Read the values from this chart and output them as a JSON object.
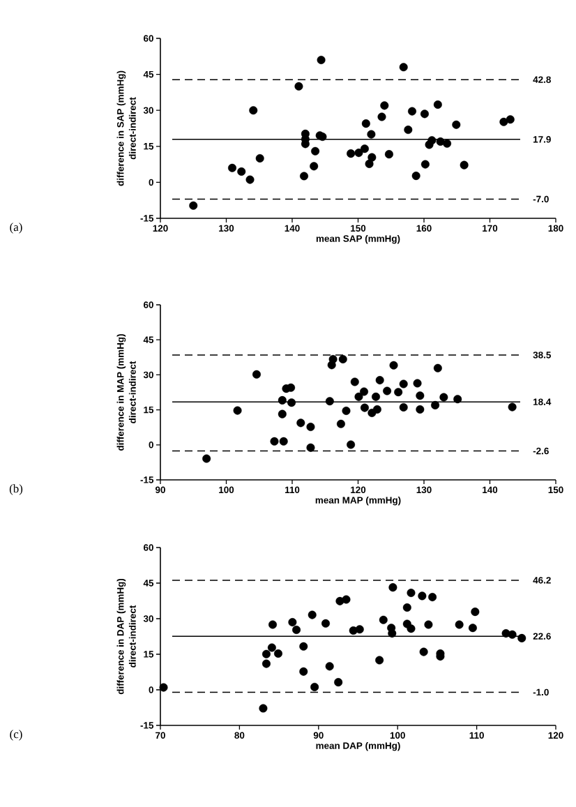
{
  "chart_data": [
    {
      "type": "scatter",
      "xlabel": "mean SAP (mmHg)",
      "ylabel": "difference in SAP (mmHg)",
      "annotations": [
        "direct-indirect",
        "(a)"
      ],
      "color": "#000000",
      "marker": "circle",
      "xlim": [
        120,
        180
      ],
      "ylim": [
        -15,
        60
      ],
      "xticks": [
        120,
        130,
        140,
        150,
        160,
        170,
        180
      ],
      "yticks": [
        -15,
        0,
        15,
        30,
        45,
        60
      ],
      "x": [
        125.0,
        130.9,
        132.3,
        133.6,
        134.1,
        135.1,
        141.0,
        141.8,
        142.0,
        142.0,
        142.0,
        143.5,
        143.3,
        144.4,
        144.2,
        144.6,
        148.9,
        150.1,
        151.0,
        151.2,
        152.0,
        152.1,
        151.7,
        153.6,
        154.0,
        154.7,
        156.9,
        157.6,
        158.2,
        158.8,
        160.1,
        160.2,
        160.8,
        161.2,
        162.1,
        162.5,
        163.5,
        164.9,
        166.1,
        172.1,
        173.1
      ],
      "values": [
        -9.7,
        6.0,
        4.5,
        1.1,
        30.0,
        10.0,
        40.0,
        2.6,
        20.2,
        18.0,
        16.0,
        13.0,
        6.7,
        51.0,
        19.5,
        19.0,
        12.0,
        12.3,
        14.0,
        24.5,
        20.0,
        10.4,
        7.7,
        27.3,
        32.0,
        11.7,
        48.0,
        21.9,
        29.6,
        2.7,
        28.5,
        7.5,
        15.7,
        17.5,
        32.4,
        17.0,
        16.2,
        24.0,
        7.2,
        25.2,
        26.2
      ],
      "ref_lines": [
        {
          "axis": "y",
          "value": 42.8,
          "label": "42.8",
          "line_style": "dashed"
        },
        {
          "axis": "y",
          "value": 17.9,
          "label": "17.9",
          "line_style": "solid"
        },
        {
          "axis": "y",
          "value": -7.0,
          "label": "-7.0",
          "line_style": "dashed"
        }
      ]
    },
    {
      "type": "scatter",
      "xlabel": "mean MAP (mmHg)",
      "ylabel": "difference in MAP (mmHg)",
      "annotations": [
        "direct-indirect",
        "(b)"
      ],
      "color": "#000000",
      "marker": "circle",
      "xlim": [
        90,
        150
      ],
      "ylim": [
        -15,
        60
      ],
      "xticks": [
        90,
        100,
        110,
        120,
        130,
        140,
        150
      ],
      "yticks": [
        -15,
        0,
        15,
        30,
        45,
        60
      ],
      "x": [
        97.0,
        101.7,
        104.6,
        107.3,
        108.7,
        108.5,
        108.5,
        109.1,
        109.8,
        109.9,
        111.3,
        112.8,
        112.8,
        115.7,
        116.0,
        116.2,
        117.7,
        117.4,
        118.2,
        118.9,
        119.5,
        120.1,
        120.9,
        121.0,
        122.1,
        122.7,
        122.9,
        123.3,
        124.4,
        125.4,
        126.1,
        126.9,
        126.9,
        129.0,
        129.4,
        129.4,
        131.7,
        132.1,
        133.0,
        135.1,
        143.4
      ],
      "values": [
        -5.9,
        14.7,
        30.2,
        1.5,
        1.5,
        19.1,
        13.2,
        24.1,
        24.5,
        18.1,
        9.4,
        7.7,
        -1.2,
        18.7,
        34.2,
        36.7,
        36.7,
        9.0,
        14.6,
        0.1,
        27.0,
        20.6,
        22.8,
        15.9,
        13.7,
        20.6,
        15.2,
        27.7,
        23.1,
        34.1,
        22.6,
        26.1,
        16.1,
        26.4,
        21.1,
        15.2,
        17.0,
        32.9,
        20.4,
        19.6,
        16.2
      ],
      "ref_lines": [
        {
          "axis": "y",
          "value": 38.5,
          "label": "38.5",
          "line_style": "dashed"
        },
        {
          "axis": "y",
          "value": 18.4,
          "label": "18.4",
          "line_style": "solid"
        },
        {
          "axis": "y",
          "value": -2.6,
          "label": "-2.6",
          "line_style": "dashed"
        }
      ]
    },
    {
      "type": "scatter",
      "xlabel": "mean DAP (mmHg)",
      "ylabel": "difference in DAP (mmHg)",
      "annotations": [
        "direct-indirect",
        "(c)"
      ],
      "color": "#000000",
      "marker": "circle",
      "xlim": [
        70,
        120
      ],
      "ylim": [
        -15,
        60
      ],
      "xticks": [
        70,
        80,
        90,
        100,
        110,
        120
      ],
      "yticks": [
        -15,
        0,
        15,
        30,
        45,
        60
      ],
      "x": [
        70.4,
        83.0,
        83.4,
        83.4,
        84.1,
        84.2,
        84.9,
        86.7,
        87.2,
        88.1,
        88.1,
        89.2,
        89.5,
        90.9,
        91.4,
        92.5,
        92.7,
        93.5,
        94.4,
        95.2,
        97.7,
        98.2,
        99.2,
        99.3,
        99.4,
        101.2,
        101.2,
        101.7,
        101.7,
        103.1,
        103.3,
        103.9,
        104.4,
        105.4,
        105.4,
        107.8,
        109.5,
        109.8,
        113.7,
        114.5,
        115.7
      ],
      "values": [
        1.0,
        -7.8,
        11.0,
        15.1,
        17.8,
        27.5,
        15.3,
        28.5,
        25.3,
        18.3,
        7.7,
        31.6,
        1.2,
        28.0,
        9.9,
        3.2,
        37.4,
        38.1,
        25.0,
        25.5,
        12.5,
        29.5,
        26.1,
        23.8,
        43.2,
        34.7,
        27.8,
        40.9,
        25.8,
        39.6,
        16.0,
        27.5,
        39.1,
        15.3,
        14.1,
        27.5,
        26.1,
        32.9,
        23.8,
        23.3,
        21.8
      ],
      "ref_lines": [
        {
          "axis": "y",
          "value": 46.2,
          "label": "46.2",
          "line_style": "dashed"
        },
        {
          "axis": "y",
          "value": 22.6,
          "label": "22.6",
          "line_style": "solid"
        },
        {
          "axis": "y",
          "value": -1.0,
          "label": "-1.0",
          "line_style": "dashed"
        }
      ]
    }
  ]
}
